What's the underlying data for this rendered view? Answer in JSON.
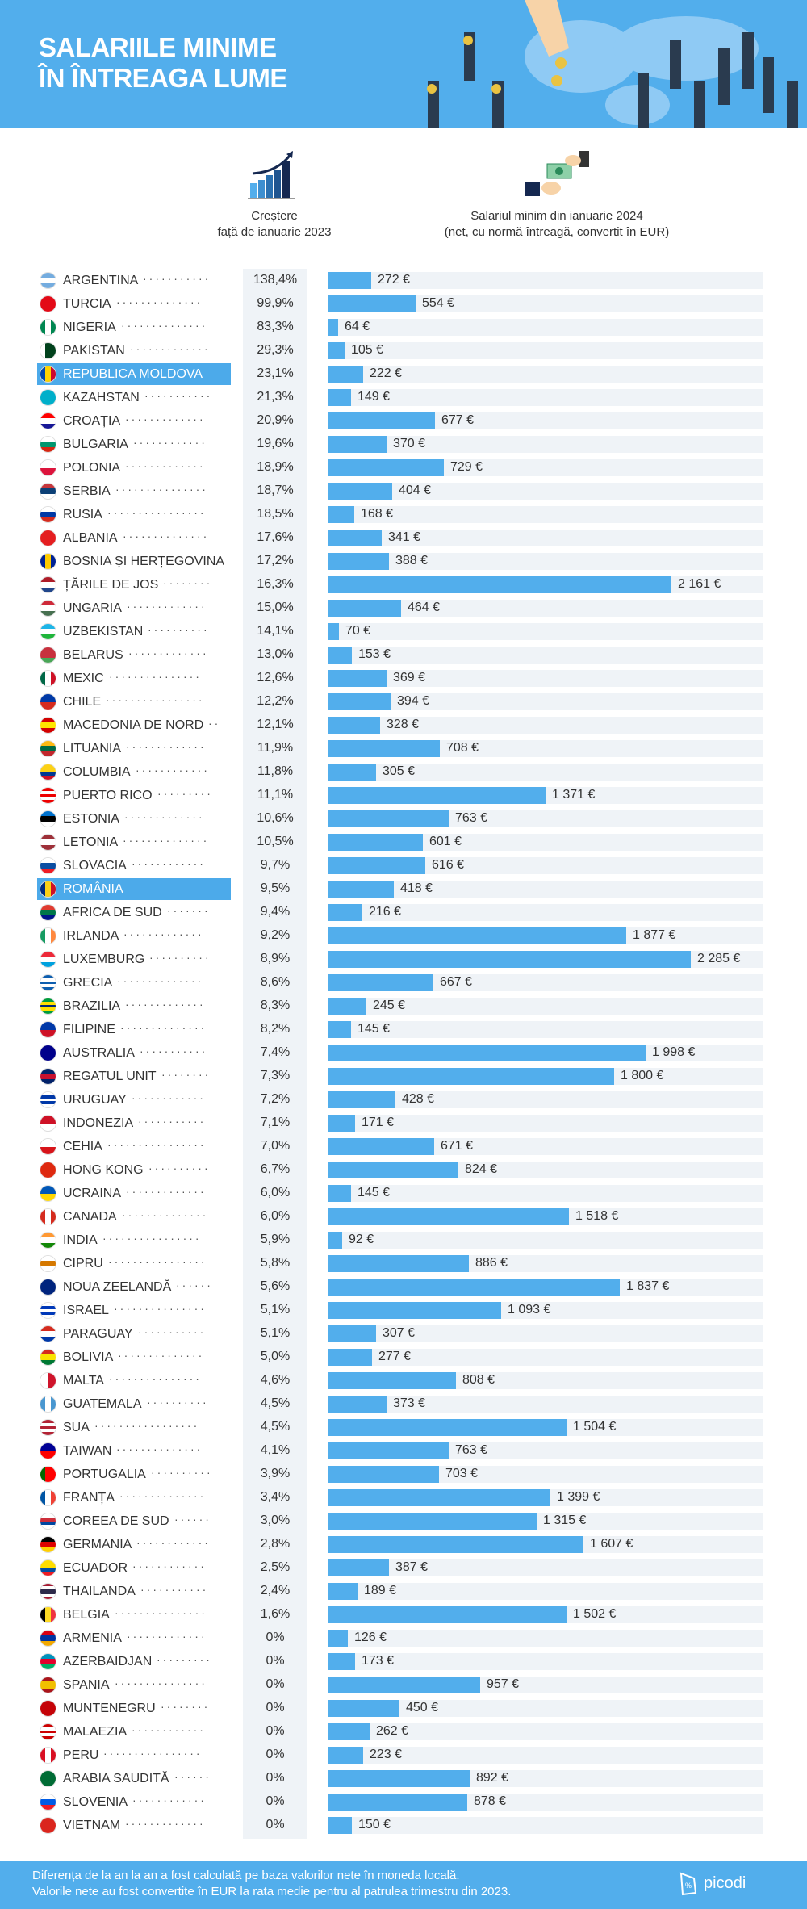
{
  "header": {
    "title_line1": "SALARIILE MINIME",
    "title_line2": "ÎN ÎNTREAGA LUME"
  },
  "columns": {
    "growth_line1": "Creștere",
    "growth_line2": "față de ianuarie 2023",
    "wage_line1": "Salariul minim din ianuarie 2024",
    "wage_line2": "(net, cu normă întreagă, convertit în EUR)"
  },
  "colors": {
    "accent": "#52aeec",
    "track": "#eff3f7",
    "highlight": "#4caaea"
  },
  "chart_data": {
    "type": "bar",
    "orientation": "horizontal",
    "unit": "€",
    "highlighted": [
      "REPUBLICA MOLDOVA",
      "ROMÂNIA"
    ],
    "rows": [
      {
        "country": "ARGENTINA",
        "growth": "138,4%",
        "wage": 272,
        "wage_label": "272 €",
        "flag": [
          "#74acdf",
          "#fff",
          "#74acdf"
        ]
      },
      {
        "country": "TURCIA",
        "growth": "99,9%",
        "wage": 554,
        "wage_label": "554 €",
        "flag": [
          "#e30a17"
        ]
      },
      {
        "country": "NIGERIA",
        "growth": "83,3%",
        "wage": 64,
        "wage_label": "64 €",
        "flag": [
          "#008751",
          "#fff",
          "#008751"
        ],
        "vertical": true
      },
      {
        "country": "PAKISTAN",
        "growth": "29,3%",
        "wage": 105,
        "wage_label": "105 €",
        "flag": [
          "#fff",
          "#01411c",
          "#01411c"
        ],
        "vertical": true
      },
      {
        "country": "REPUBLICA MOLDOVA",
        "growth": "23,1%",
        "wage": 222,
        "wage_label": "222 €",
        "flag": [
          "#0046ae",
          "#ffd200",
          "#cc092f"
        ],
        "vertical": true
      },
      {
        "country": "KAZAHSTAN",
        "growth": "21,3%",
        "wage": 149,
        "wage_label": "149 €",
        "flag": [
          "#00afca"
        ]
      },
      {
        "country": "CROAȚIA",
        "growth": "20,9%",
        "wage": 677,
        "wage_label": "677 €",
        "flag": [
          "#ff0000",
          "#fff",
          "#171796"
        ]
      },
      {
        "country": "BULGARIA",
        "growth": "19,6%",
        "wage": 370,
        "wage_label": "370 €",
        "flag": [
          "#fff",
          "#00966e",
          "#d62612"
        ]
      },
      {
        "country": "POLONIA",
        "growth": "18,9%",
        "wage": 729,
        "wage_label": "729 €",
        "flag": [
          "#fff",
          "#dc143c"
        ]
      },
      {
        "country": "SERBIA",
        "growth": "18,7%",
        "wage": 404,
        "wage_label": "404 €",
        "flag": [
          "#c6363c",
          "#0c4076",
          "#fff"
        ]
      },
      {
        "country": "RUSIA",
        "growth": "18,5%",
        "wage": 168,
        "wage_label": "168 €",
        "flag": [
          "#fff",
          "#0039a6",
          "#d52b1e"
        ]
      },
      {
        "country": "ALBANIA",
        "growth": "17,6%",
        "wage": 341,
        "wage_label": "341 €",
        "flag": [
          "#e41e20"
        ]
      },
      {
        "country": "BOSNIA ȘI HERȚEGOVINA",
        "growth": "17,2%",
        "wage": 388,
        "wage_label": "388 €",
        "flag": [
          "#002395",
          "#fecb00",
          "#002395"
        ],
        "vertical": true
      },
      {
        "country": "ȚĂRILE DE JOS",
        "growth": "16,3%",
        "wage": 2161,
        "wage_label": "2 161 €",
        "flag": [
          "#ae1c28",
          "#fff",
          "#21468b"
        ]
      },
      {
        "country": "UNGARIA",
        "growth": "15,0%",
        "wage": 464,
        "wage_label": "464 €",
        "flag": [
          "#ce2939",
          "#fff",
          "#477050"
        ]
      },
      {
        "country": "UZBEKISTAN",
        "growth": "14,1%",
        "wage": 70,
        "wage_label": "70 €",
        "flag": [
          "#1eb5e7",
          "#fff",
          "#1eb53a"
        ]
      },
      {
        "country": "BELARUS",
        "growth": "13,0%",
        "wage": 153,
        "wage_label": "153 €",
        "flag": [
          "#c8313e",
          "#c8313e",
          "#4aa657"
        ]
      },
      {
        "country": "MEXIC",
        "growth": "12,6%",
        "wage": 369,
        "wage_label": "369 €",
        "flag": [
          "#006847",
          "#fff",
          "#ce1126"
        ],
        "vertical": true
      },
      {
        "country": "CHILE",
        "growth": "12,2%",
        "wage": 394,
        "wage_label": "394 €",
        "flag": [
          "#0039a6",
          "#d52b1e"
        ]
      },
      {
        "country": "MACEDONIA DE NORD",
        "growth": "12,1%",
        "wage": 328,
        "wage_label": "328 €",
        "flag": [
          "#d20000",
          "#ffe600",
          "#d20000"
        ]
      },
      {
        "country": "LITUANIA",
        "growth": "11,9%",
        "wage": 708,
        "wage_label": "708 €",
        "flag": [
          "#fdb913",
          "#006a44",
          "#c1272d"
        ]
      },
      {
        "country": "COLUMBIA",
        "growth": "11,8%",
        "wage": 305,
        "wage_label": "305 €",
        "flag": [
          "#fcd116",
          "#fcd116",
          "#003893",
          "#ce1126"
        ]
      },
      {
        "country": "PUERTO RICO",
        "growth": "11,1%",
        "wage": 1371,
        "wage_label": "1 371 €",
        "flag": [
          "#ed0000",
          "#fff",
          "#ed0000",
          "#fff",
          "#ed0000"
        ]
      },
      {
        "country": "ESTONIA",
        "growth": "10,6%",
        "wage": 763,
        "wage_label": "763 €",
        "flag": [
          "#0072ce",
          "#000",
          "#fff"
        ]
      },
      {
        "country": "LETONIA",
        "growth": "10,5%",
        "wage": 601,
        "wage_label": "601 €",
        "flag": [
          "#9e3039",
          "#fff",
          "#9e3039"
        ]
      },
      {
        "country": "SLOVACIA",
        "growth": "9,7%",
        "wage": 616,
        "wage_label": "616 €",
        "flag": [
          "#fff",
          "#0b4ea2",
          "#ee1c25"
        ]
      },
      {
        "country": "ROMÂNIA",
        "growth": "9,5%",
        "wage": 418,
        "wage_label": "418 €",
        "flag": [
          "#002b7f",
          "#fcd116",
          "#ce1126"
        ],
        "vertical": true
      },
      {
        "country": "AFRICA DE SUD",
        "growth": "9,4%",
        "wage": 216,
        "wage_label": "216 €",
        "flag": [
          "#e03c31",
          "#007749",
          "#001489"
        ]
      },
      {
        "country": "IRLANDA",
        "growth": "9,2%",
        "wage": 1877,
        "wage_label": "1 877 €",
        "flag": [
          "#169b62",
          "#fff",
          "#ff883e"
        ],
        "vertical": true
      },
      {
        "country": "LUXEMBURG",
        "growth": "8,9%",
        "wage": 2285,
        "wage_label": "2 285 €",
        "flag": [
          "#ed2939",
          "#fff",
          "#00a1de"
        ]
      },
      {
        "country": "GRECIA",
        "growth": "8,6%",
        "wage": 667,
        "wage_label": "667 €",
        "flag": [
          "#0d5eaf",
          "#fff",
          "#0d5eaf",
          "#fff",
          "#0d5eaf"
        ]
      },
      {
        "country": "BRAZILIA",
        "growth": "8,3%",
        "wage": 245,
        "wage_label": "245 €",
        "flag": [
          "#009c3b",
          "#ffdf00",
          "#002776",
          "#ffdf00",
          "#009c3b"
        ]
      },
      {
        "country": "FILIPINE",
        "growth": "8,2%",
        "wage": 145,
        "wage_label": "145 €",
        "flag": [
          "#0038a8",
          "#ce1126"
        ]
      },
      {
        "country": "AUSTRALIA",
        "growth": "7,4%",
        "wage": 1998,
        "wage_label": "1 998 €",
        "flag": [
          "#00008b"
        ]
      },
      {
        "country": "REGATUL UNIT",
        "growth": "7,3%",
        "wage": 1800,
        "wage_label": "1 800 €",
        "flag": [
          "#012169",
          "#c8102e",
          "#012169"
        ]
      },
      {
        "country": "URUGUAY",
        "growth": "7,2%",
        "wage": 428,
        "wage_label": "428 €",
        "flag": [
          "#fff",
          "#0038a8",
          "#fff",
          "#0038a8",
          "#fff"
        ]
      },
      {
        "country": "INDONEZIA",
        "growth": "7,1%",
        "wage": 171,
        "wage_label": "171 €",
        "flag": [
          "#ce1126",
          "#fff"
        ]
      },
      {
        "country": "CEHIA",
        "growth": "7,0%",
        "wage": 671,
        "wage_label": "671 €",
        "flag": [
          "#fff",
          "#d7141a"
        ]
      },
      {
        "country": "HONG KONG",
        "growth": "6,7%",
        "wage": 824,
        "wage_label": "824 €",
        "flag": [
          "#de2910"
        ]
      },
      {
        "country": "UCRAINA",
        "growth": "6,0%",
        "wage": 145,
        "wage_label": "145 €",
        "flag": [
          "#0057b7",
          "#ffd700"
        ]
      },
      {
        "country": "CANADA",
        "growth": "6,0%",
        "wage": 1518,
        "wage_label": "1 518 €",
        "flag": [
          "#d52b1e",
          "#fff",
          "#d52b1e"
        ],
        "vertical": true
      },
      {
        "country": "INDIA",
        "growth": "5,9%",
        "wage": 92,
        "wage_label": "92 €",
        "flag": [
          "#ff9933",
          "#fff",
          "#138808"
        ]
      },
      {
        "country": "CIPRU",
        "growth": "5,8%",
        "wage": 886,
        "wage_label": "886 €",
        "flag": [
          "#fff",
          "#d57800",
          "#fff"
        ]
      },
      {
        "country": "NOUA ZEELANDĂ",
        "growth": "5,6%",
        "wage": 1837,
        "wage_label": "1 837 €",
        "flag": [
          "#00247d"
        ]
      },
      {
        "country": "ISRAEL",
        "growth": "5,1%",
        "wage": 1093,
        "wage_label": "1 093 €",
        "flag": [
          "#fff",
          "#0038b8",
          "#fff",
          "#0038b8",
          "#fff"
        ]
      },
      {
        "country": "PARAGUAY",
        "growth": "5,1%",
        "wage": 307,
        "wage_label": "307 €",
        "flag": [
          "#d52b1e",
          "#fff",
          "#0038a8"
        ]
      },
      {
        "country": "BOLIVIA",
        "growth": "5,0%",
        "wage": 277,
        "wage_label": "277 €",
        "flag": [
          "#d52b1e",
          "#f9e300",
          "#007934"
        ]
      },
      {
        "country": "MALTA",
        "growth": "4,6%",
        "wage": 808,
        "wage_label": "808 €",
        "flag": [
          "#fff",
          "#cf142b"
        ],
        "vertical": true
      },
      {
        "country": "GUATEMALA",
        "growth": "4,5%",
        "wage": 373,
        "wage_label": "373 €",
        "flag": [
          "#4997d0",
          "#fff",
          "#4997d0"
        ],
        "vertical": true
      },
      {
        "country": "SUA",
        "growth": "4,5%",
        "wage": 1504,
        "wage_label": "1 504 €",
        "flag": [
          "#b22234",
          "#fff",
          "#b22234",
          "#fff",
          "#b22234"
        ]
      },
      {
        "country": "TAIWAN",
        "growth": "4,1%",
        "wage": 763,
        "wage_label": "763 €",
        "flag": [
          "#000095",
          "#fe0000"
        ]
      },
      {
        "country": "PORTUGALIA",
        "growth": "3,9%",
        "wage": 703,
        "wage_label": "703 €",
        "flag": [
          "#006600",
          "#ff0000",
          "#ff0000"
        ],
        "vertical": true
      },
      {
        "country": "FRANȚA",
        "growth": "3,4%",
        "wage": 1399,
        "wage_label": "1 399 €",
        "flag": [
          "#0055a4",
          "#fff",
          "#ef4135"
        ],
        "vertical": true
      },
      {
        "country": "COREEA DE SUD",
        "growth": "3,0%",
        "wage": 1315,
        "wage_label": "1 315 €",
        "flag": [
          "#fff",
          "#cd2e3a",
          "#0047a0",
          "#fff"
        ]
      },
      {
        "country": "GERMANIA",
        "growth": "2,8%",
        "wage": 1607,
        "wage_label": "1 607 €",
        "flag": [
          "#000",
          "#dd0000",
          "#ffce00"
        ]
      },
      {
        "country": "ECUADOR",
        "growth": "2,5%",
        "wage": 387,
        "wage_label": "387 €",
        "flag": [
          "#ffdd00",
          "#ffdd00",
          "#034ea2",
          "#ed1c24"
        ]
      },
      {
        "country": "THAILANDA",
        "growth": "2,4%",
        "wage": 189,
        "wage_label": "189 €",
        "flag": [
          "#a51931",
          "#fff",
          "#2d2a4a",
          "#2d2a4a",
          "#fff",
          "#a51931"
        ]
      },
      {
        "country": "BELGIA",
        "growth": "1,6%",
        "wage": 1502,
        "wage_label": "1 502 €",
        "flag": [
          "#000",
          "#fdda24",
          "#ef3340"
        ],
        "vertical": true
      },
      {
        "country": "ARMENIA",
        "growth": "0%",
        "wage": 126,
        "wage_label": "126 €",
        "flag": [
          "#d90012",
          "#0033a0",
          "#f2a800"
        ]
      },
      {
        "country": "AZERBAIDJAN",
        "growth": "0%",
        "wage": 173,
        "wage_label": "173 €",
        "flag": [
          "#0092bc",
          "#e4002b",
          "#00af66"
        ]
      },
      {
        "country": "SPANIA",
        "growth": "0%",
        "wage": 957,
        "wage_label": "957 €",
        "flag": [
          "#aa151b",
          "#f1bf00",
          "#f1bf00",
          "#aa151b"
        ]
      },
      {
        "country": "MUNTENEGRU",
        "growth": "0%",
        "wage": 450,
        "wage_label": "450 €",
        "flag": [
          "#c40308"
        ]
      },
      {
        "country": "MALAEZIA",
        "growth": "0%",
        "wage": 262,
        "wage_label": "262 €",
        "flag": [
          "#cc0001",
          "#fff",
          "#cc0001",
          "#fff",
          "#cc0001"
        ]
      },
      {
        "country": "PERU",
        "growth": "0%",
        "wage": 223,
        "wage_label": "223 €",
        "flag": [
          "#d91023",
          "#fff",
          "#d91023"
        ],
        "vertical": true
      },
      {
        "country": "ARABIA SAUDITĂ",
        "growth": "0%",
        "wage": 892,
        "wage_label": "892 €",
        "flag": [
          "#006c35"
        ]
      },
      {
        "country": "SLOVENIA",
        "growth": "0%",
        "wage": 878,
        "wage_label": "878 €",
        "flag": [
          "#fff",
          "#005ce5",
          "#ed1c24"
        ]
      },
      {
        "country": "VIETNAM",
        "growth": "0%",
        "wage": 150,
        "wage_label": "150 €",
        "flag": [
          "#da251d"
        ]
      }
    ]
  },
  "footer": {
    "note_line1": "Diferența de la an la an a fost calculată pe baza valorilor nete în moneda locală.",
    "note_line2": "Valorile nete au fost convertite în EUR la rata medie pentru al patrulea trimestru din 2023.",
    "logo": "picodi"
  }
}
